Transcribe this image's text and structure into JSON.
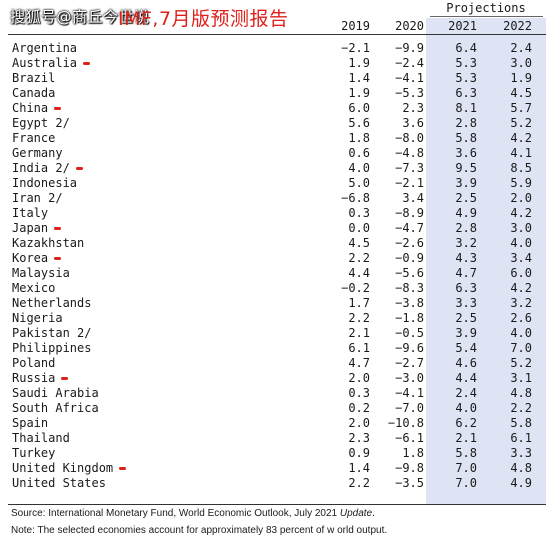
{
  "overlay": {
    "watermark": "搜狐号@商丘今世说",
    "headline": "IMF,7月版预测报告"
  },
  "header": {
    "projections_label": "Projections",
    "columns": [
      "2019",
      "2020",
      "2021",
      "2022"
    ]
  },
  "rows": [
    {
      "country": "Argentina",
      "y2019": "−2.1",
      "y2020": "−9.9",
      "y2021": "6.4",
      "y2022": "2.4",
      "mark": false
    },
    {
      "country": "Australia",
      "y2019": "1.9",
      "y2020": "−2.4",
      "y2021": "5.3",
      "y2022": "3.0",
      "mark": true
    },
    {
      "country": "Brazil",
      "y2019": "1.4",
      "y2020": "−4.1",
      "y2021": "5.3",
      "y2022": "1.9",
      "mark": false
    },
    {
      "country": "Canada",
      "y2019": "1.9",
      "y2020": "−5.3",
      "y2021": "6.3",
      "y2022": "4.5",
      "mark": false
    },
    {
      "country": "China",
      "y2019": "6.0",
      "y2020": "2.3",
      "y2021": "8.1",
      "y2022": "5.7",
      "mark": true
    },
    {
      "country": "Egypt 2/",
      "y2019": "5.6",
      "y2020": "3.6",
      "y2021": "2.8",
      "y2022": "5.2",
      "mark": false
    },
    {
      "country": "France",
      "y2019": "1.8",
      "y2020": "−8.0",
      "y2021": "5.8",
      "y2022": "4.2",
      "mark": false
    },
    {
      "country": "Germany",
      "y2019": "0.6",
      "y2020": "−4.8",
      "y2021": "3.6",
      "y2022": "4.1",
      "mark": false
    },
    {
      "country": "India 2/",
      "y2019": "4.0",
      "y2020": "−7.3",
      "y2021": "9.5",
      "y2022": "8.5",
      "mark": true
    },
    {
      "country": "Indonesia",
      "y2019": "5.0",
      "y2020": "−2.1",
      "y2021": "3.9",
      "y2022": "5.9",
      "mark": false
    },
    {
      "country": "Iran 2/",
      "y2019": "−6.8",
      "y2020": "3.4",
      "y2021": "2.5",
      "y2022": "2.0",
      "mark": false
    },
    {
      "country": "Italy",
      "y2019": "0.3",
      "y2020": "−8.9",
      "y2021": "4.9",
      "y2022": "4.2",
      "mark": false
    },
    {
      "country": "Japan",
      "y2019": "0.0",
      "y2020": "−4.7",
      "y2021": "2.8",
      "y2022": "3.0",
      "mark": true
    },
    {
      "country": "Kazakhstan",
      "y2019": "4.5",
      "y2020": "−2.6",
      "y2021": "3.2",
      "y2022": "4.0",
      "mark": false
    },
    {
      "country": "Korea",
      "y2019": "2.2",
      "y2020": "−0.9",
      "y2021": "4.3",
      "y2022": "3.4",
      "mark": true
    },
    {
      "country": "Malaysia",
      "y2019": "4.4",
      "y2020": "−5.6",
      "y2021": "4.7",
      "y2022": "6.0",
      "mark": false
    },
    {
      "country": "Mexico",
      "y2019": "−0.2",
      "y2020": "−8.3",
      "y2021": "6.3",
      "y2022": "4.2",
      "mark": false
    },
    {
      "country": "Netherlands",
      "y2019": "1.7",
      "y2020": "−3.8",
      "y2021": "3.3",
      "y2022": "3.2",
      "mark": false
    },
    {
      "country": "Nigeria",
      "y2019": "2.2",
      "y2020": "−1.8",
      "y2021": "2.5",
      "y2022": "2.6",
      "mark": false
    },
    {
      "country": "Pakistan 2/",
      "y2019": "2.1",
      "y2020": "−0.5",
      "y2021": "3.9",
      "y2022": "4.0",
      "mark": false
    },
    {
      "country": "Philippines",
      "y2019": "6.1",
      "y2020": "−9.6",
      "y2021": "5.4",
      "y2022": "7.0",
      "mark": false
    },
    {
      "country": "Poland",
      "y2019": "4.7",
      "y2020": "−2.7",
      "y2021": "4.6",
      "y2022": "5.2",
      "mark": false
    },
    {
      "country": "Russia",
      "y2019": "2.0",
      "y2020": "−3.0",
      "y2021": "4.4",
      "y2022": "3.1",
      "mark": true
    },
    {
      "country": "Saudi Arabia",
      "y2019": "0.3",
      "y2020": "−4.1",
      "y2021": "2.4",
      "y2022": "4.8",
      "mark": false
    },
    {
      "country": "South Africa",
      "y2019": "0.2",
      "y2020": "−7.0",
      "y2021": "4.0",
      "y2022": "2.2",
      "mark": false
    },
    {
      "country": "Spain",
      "y2019": "2.0",
      "y2020": "−10.8",
      "y2021": "6.2",
      "y2022": "5.8",
      "mark": false
    },
    {
      "country": "Thailand",
      "y2019": "2.3",
      "y2020": "−6.1",
      "y2021": "2.1",
      "y2022": "6.1",
      "mark": false
    },
    {
      "country": "Turkey",
      "y2019": "0.9",
      "y2020": "1.8",
      "y2021": "5.8",
      "y2022": "3.3",
      "mark": false
    },
    {
      "country": "United Kingdom",
      "y2019": "1.4",
      "y2020": "−9.8",
      "y2021": "7.0",
      "y2022": "4.8",
      "mark": true
    },
    {
      "country": "United States",
      "y2019": "2.2",
      "y2020": "−3.5",
      "y2021": "7.0",
      "y2022": "4.9",
      "mark": false
    }
  ],
  "footnotes": {
    "source_prefix": "Source: International Monetary Fund, World Economic Outlook, July 2021 ",
    "source_italic": "Update",
    "source_suffix": ".",
    "note": "Note: The selected economies account for approximately 83 percent of w orld output."
  },
  "colors": {
    "projection_band": "#dfe4f5",
    "annotation_red": "#e0201b"
  }
}
